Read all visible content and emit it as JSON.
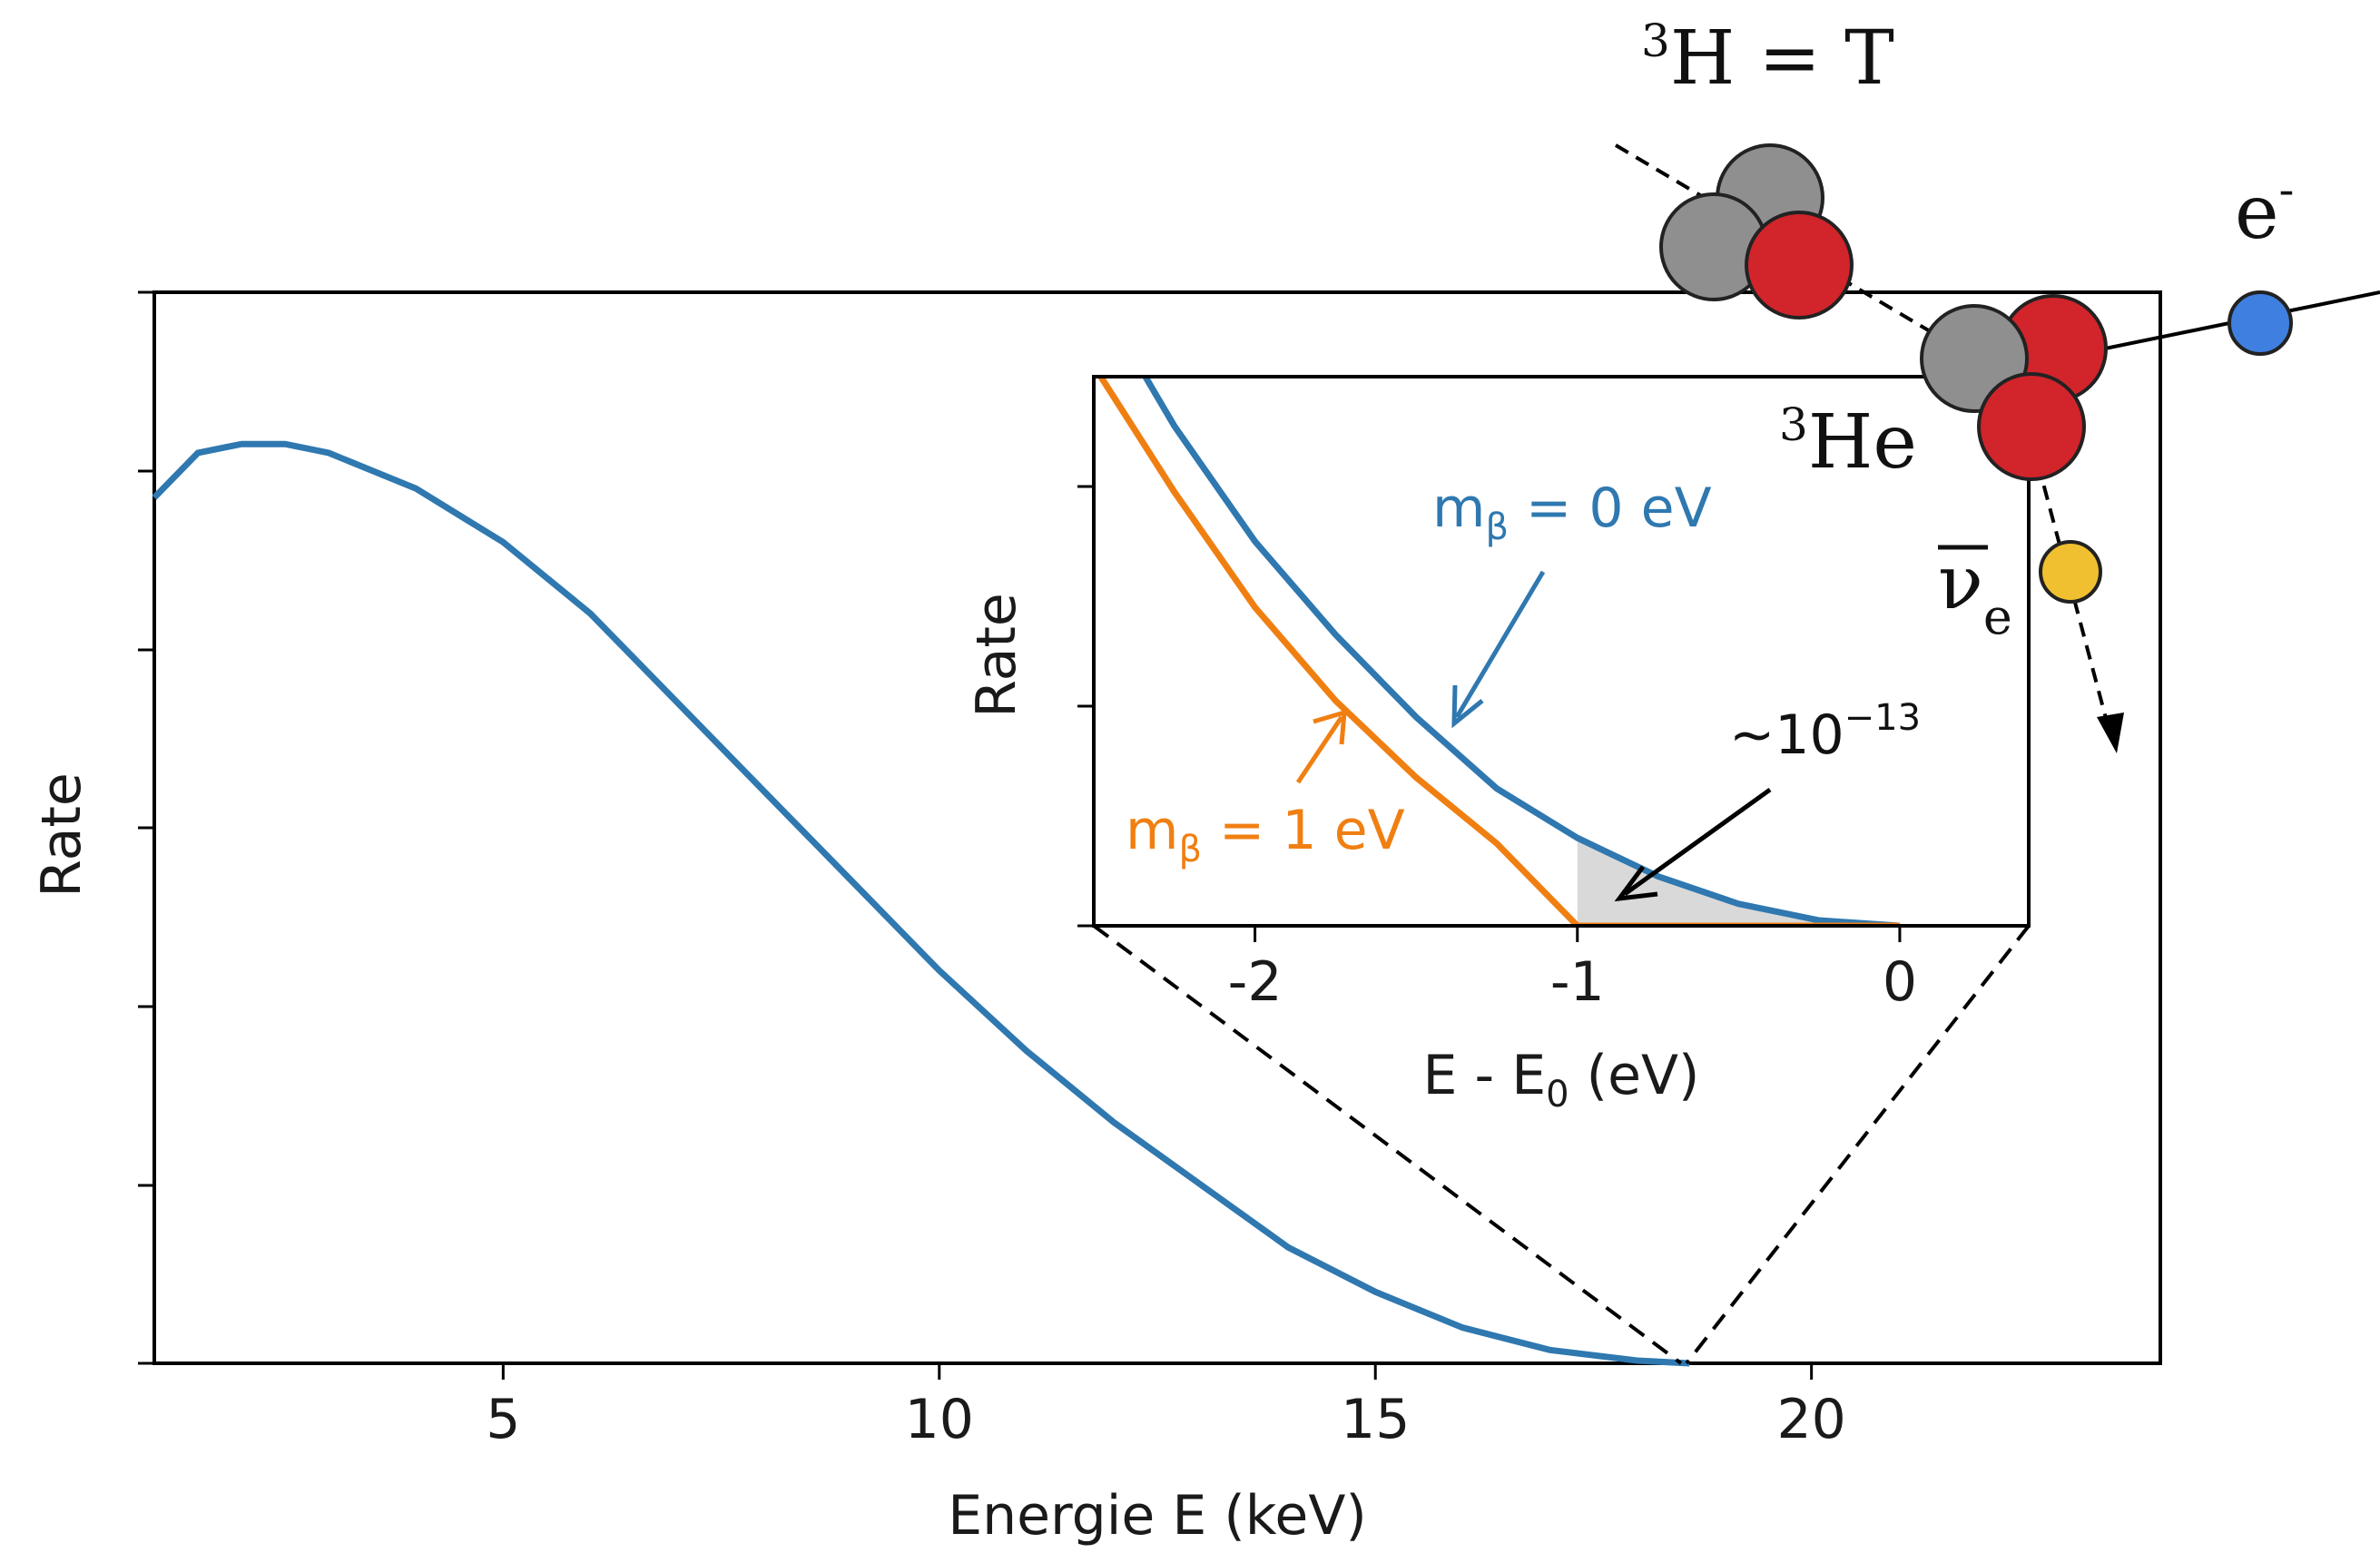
{
  "chart_data": [
    {
      "type": "line",
      "xlabel": "Energie E (keV)",
      "ylabel": "Rate",
      "xlim": [
        1,
        24
      ],
      "ylim": [
        0,
        1.2
      ],
      "xticks": [
        5,
        10,
        15,
        20
      ],
      "x": [
        1.0,
        1.5,
        2.0,
        2.5,
        3.0,
        4.0,
        5.0,
        6.0,
        7.0,
        8.0,
        9.0,
        10.0,
        11.0,
        12.0,
        13.0,
        14.0,
        15.0,
        16.0,
        17.0,
        18.0,
        18.6
      ],
      "series": [
        {
          "color": "#2f78b0",
          "values": [
            0.97,
            1.02,
            1.03,
            1.03,
            1.02,
            0.98,
            0.92,
            0.84,
            0.74,
            0.64,
            0.54,
            0.44,
            0.35,
            0.27,
            0.2,
            0.13,
            0.08,
            0.04,
            0.015,
            0.003,
            0.0
          ]
        }
      ],
      "grid": false
    },
    {
      "type": "line",
      "xlabel": "E - E₀ (eV)",
      "ylabel": "Rate",
      "xlim": [
        -2.5,
        0.4
      ],
      "ylim": [
        0,
        1
      ],
      "xticks": [
        -2,
        -1,
        0
      ],
      "x": [
        -2.5,
        -2.25,
        -2.0,
        -1.75,
        -1.5,
        -1.25,
        -1.0,
        -0.75,
        -0.5,
        -0.25,
        0.0
      ],
      "series": [
        {
          "label": "mβ = 0 eV",
          "color": "#2f78b0",
          "values": [
            1.16,
            0.91,
            0.7,
            0.53,
            0.38,
            0.25,
            0.16,
            0.09,
            0.04,
            0.01,
            0.0
          ]
        },
        {
          "label": "mβ = 1 eV",
          "color": "#f07f12",
          "values": [
            1.02,
            0.79,
            0.58,
            0.41,
            0.27,
            0.15,
            0.0,
            0.0,
            0.0,
            0.0,
            0.0
          ]
        }
      ],
      "shaded_region": {
        "x_from": -1.0,
        "x_to": 0.0,
        "color": "#d9d9d9"
      },
      "annotation": "~10⁻¹³",
      "grid": false
    }
  ],
  "text": {
    "main_xlabel": "Energie E (keV)",
    "main_ylabel": "Rate",
    "inset_ylabel": "Rate",
    "inset_xlabel_main": "E - E",
    "inset_xlabel_sub": "0",
    "inset_xlabel_tail": " (eV)",
    "label_m0_a": "m",
    "label_m0_sub": "β",
    "label_m0_b": " = 0 eV",
    "label_m1_a": "m",
    "label_m1_sub": "β",
    "label_m1_b": " = 1 eV",
    "annot_tilde": "~10",
    "annot_exp": "−13",
    "tritium_sup": "3",
    "tritium_rest": "H = T",
    "helium_sup": "3",
    "helium_rest": "He",
    "electron": "e",
    "electron_sup": "-",
    "neutrino": "ν",
    "neutrino_sub": "e"
  },
  "main_ticks": [
    "5",
    "10",
    "15",
    "20"
  ],
  "inset_ticks": [
    "-2",
    "-1",
    "0"
  ],
  "colors": {
    "blue": "#2f78b0",
    "orange": "#f07f12",
    "proton": "#d1242b",
    "neutron": "#8f8f8f",
    "electron": "#3f7fe0",
    "neutrino": "#f0c030"
  }
}
